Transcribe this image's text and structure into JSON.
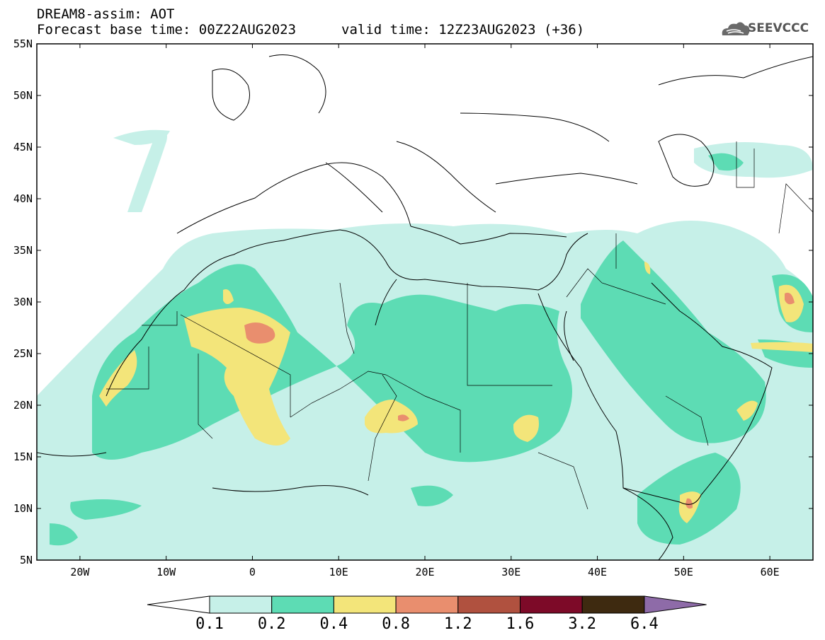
{
  "header": {
    "title": "DREAM8-assim: AOT",
    "base_time": "Forecast base time: 00Z22AUG2023",
    "valid_time": "valid time: 12Z23AUG2023 (+36)"
  },
  "logo": {
    "text": "SEEVCCC",
    "icon": "cloud-logo-icon"
  },
  "lat_labels": [
    "55N",
    "50N",
    "45N",
    "40N",
    "35N",
    "30N",
    "25N",
    "20N",
    "15N",
    "10N",
    "5N"
  ],
  "lon_labels": [
    "20W",
    "10W",
    "0",
    "10E",
    "20E",
    "30E",
    "40E",
    "50E",
    "60E"
  ],
  "colorbar": {
    "labels": [
      "0.1",
      "0.2",
      "0.4",
      "0.8",
      "1.2",
      "1.6",
      "3.2",
      "6.4"
    ],
    "colors": [
      "#c6f0e8",
      "#5ddcb4",
      "#f3e57a",
      "#e98e6e",
      "#b0513f",
      "#7d0a28",
      "#3e2a10",
      "#8e6ba8"
    ]
  },
  "map_extent": {
    "lon_min": -25,
    "lon_max": 65,
    "lat_min": 5,
    "lat_max": 55
  }
}
